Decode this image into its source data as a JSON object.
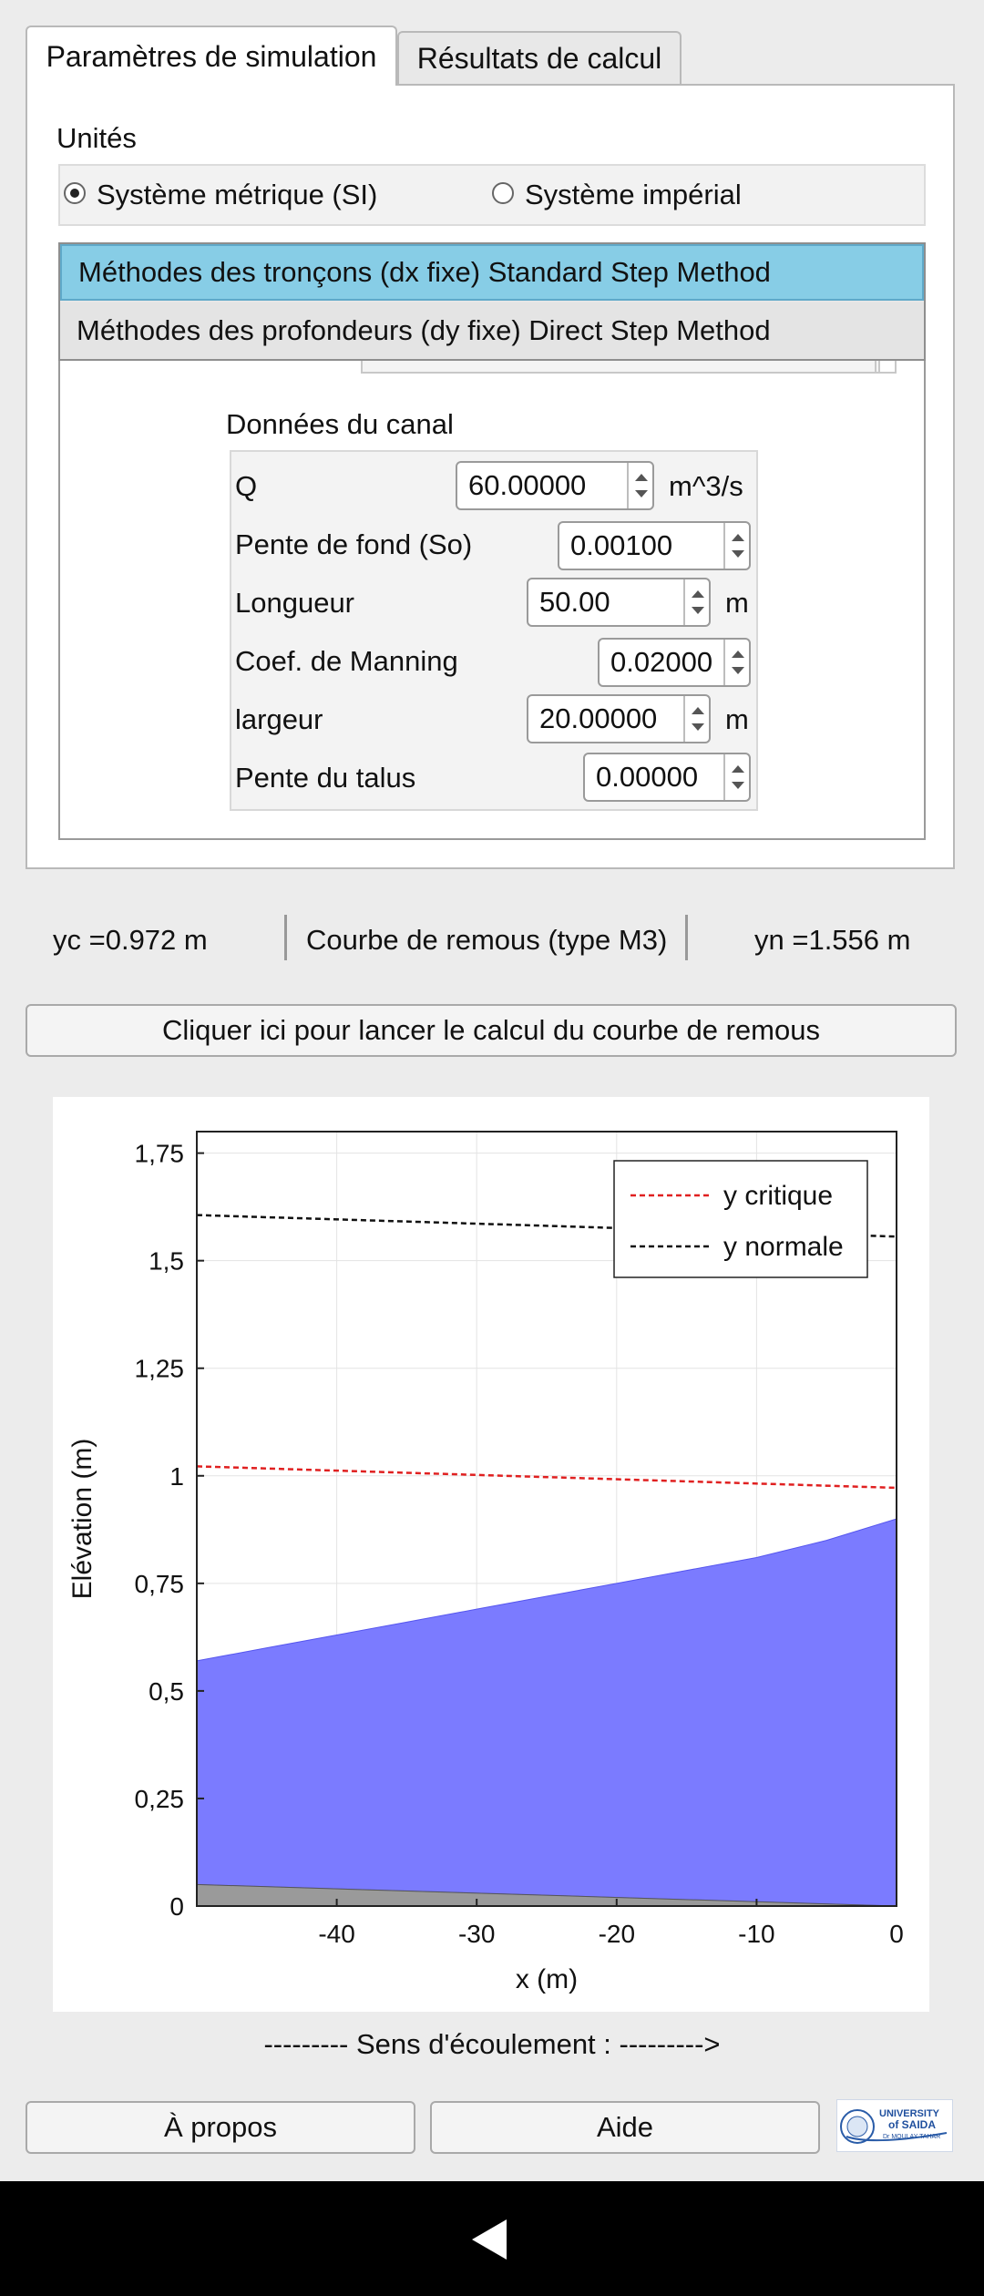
{
  "tabs": [
    {
      "label": "Paramètres de simulation"
    },
    {
      "label": "Résultats de calcul"
    }
  ],
  "units": {
    "title": "Unités",
    "options": [
      "Système métrique (SI)",
      "Système impérial"
    ],
    "selected": "Système métrique (SI)"
  },
  "methods": {
    "selected": "Méthodes des tronçons (dx fixe) Standard Step Method",
    "other": "Méthodes des profondeurs (dy fixe) Direct Step Method"
  },
  "canal": {
    "title": "Données du canal",
    "rows": [
      {
        "label": "Q",
        "value": "60.00000",
        "unit": "m^3/s"
      },
      {
        "label": "Pente de fond (So)",
        "value": "0.00100",
        "unit": ""
      },
      {
        "label": "Longueur",
        "value": "50.00",
        "unit": "m"
      },
      {
        "label": "Coef. de Manning",
        "value": "0.02000",
        "unit": ""
      },
      {
        "label": "largeur",
        "value": "20.00000",
        "unit": "m"
      },
      {
        "label": "Pente du talus",
        "value": "0.00000",
        "unit": ""
      }
    ]
  },
  "status": {
    "yc": "yc  =0.972  m",
    "curve": "Courbe de remous (type M3)",
    "yn": "yn  =1.556  m"
  },
  "run_button": "Cliquer ici pour lancer le calcul du courbe de remous",
  "flow_direction": "--------- Sens d'écoulement : --------->",
  "footer": {
    "about": "À propos",
    "help": "Aide"
  },
  "logo": {
    "line1": "UNIVERSITY",
    "line2": "of SAIDA",
    "line3": "Dr MOULAY TAHAR"
  },
  "chart_data": {
    "type": "area",
    "xlabel": "x (m)",
    "ylabel": "Elévation (m)",
    "xlim": [
      -50,
      0
    ],
    "ylim": [
      0,
      1.8
    ],
    "xticks": [
      -40,
      -30,
      -20,
      -10,
      0
    ],
    "xtick_labels": [
      "-40",
      "-30",
      "-20",
      "-10",
      "0"
    ],
    "yticks": [
      0,
      0.25,
      0.5,
      0.75,
      1,
      1.25,
      1.5,
      1.75
    ],
    "ytick_labels": [
      "0",
      "0,25",
      "0,5",
      "0,75",
      "1",
      "1,25",
      "1,5",
      "1,75"
    ],
    "grid": true,
    "legend_position": "top-right",
    "legend": [
      "y critique",
      "y normale"
    ],
    "series": [
      {
        "name": "y critique",
        "style": "dashed",
        "color": "#e02020",
        "x": [
          -50,
          0
        ],
        "y": [
          1.022,
          0.972
        ]
      },
      {
        "name": "y normale",
        "style": "dashed",
        "color": "#111111",
        "x": [
          -50,
          0
        ],
        "y": [
          1.606,
          1.556
        ]
      },
      {
        "name": "water surface",
        "color": "#7b7bff",
        "x": [
          -50,
          -45,
          -40,
          -35,
          -30,
          -25,
          -20,
          -15,
          -10,
          -5,
          0
        ],
        "y": [
          0.57,
          0.6,
          0.63,
          0.66,
          0.69,
          0.72,
          0.75,
          0.78,
          0.81,
          0.85,
          0.9
        ]
      },
      {
        "name": "channel bed",
        "color": "#9a9a9a",
        "x": [
          -50,
          0
        ],
        "y": [
          0.05,
          0.0
        ]
      }
    ]
  }
}
